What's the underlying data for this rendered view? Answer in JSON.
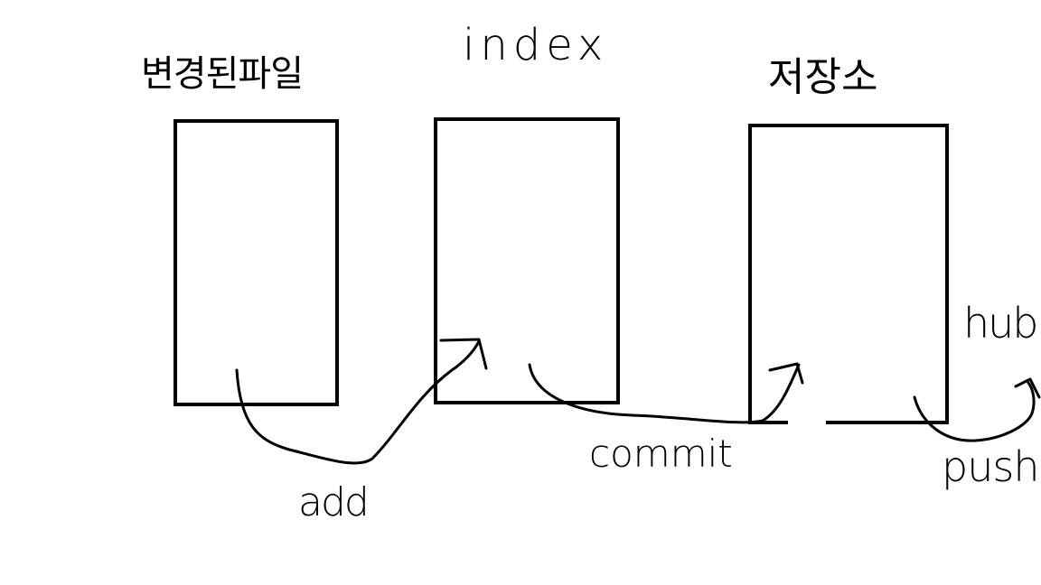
{
  "diagram": {
    "nodes": [
      {
        "id": "working",
        "label": "변경된파일"
      },
      {
        "id": "index",
        "label": "index"
      },
      {
        "id": "repo",
        "label": "저장소"
      },
      {
        "id": "remote",
        "label": "hub"
      }
    ],
    "edges": [
      {
        "from": "working",
        "to": "index",
        "label": "add"
      },
      {
        "from": "index",
        "to": "repo",
        "label": "commit"
      },
      {
        "from": "repo",
        "to": "remote",
        "label": "push"
      }
    ]
  },
  "colors": {
    "stroke": "#000000",
    "background": "#ffffff"
  }
}
